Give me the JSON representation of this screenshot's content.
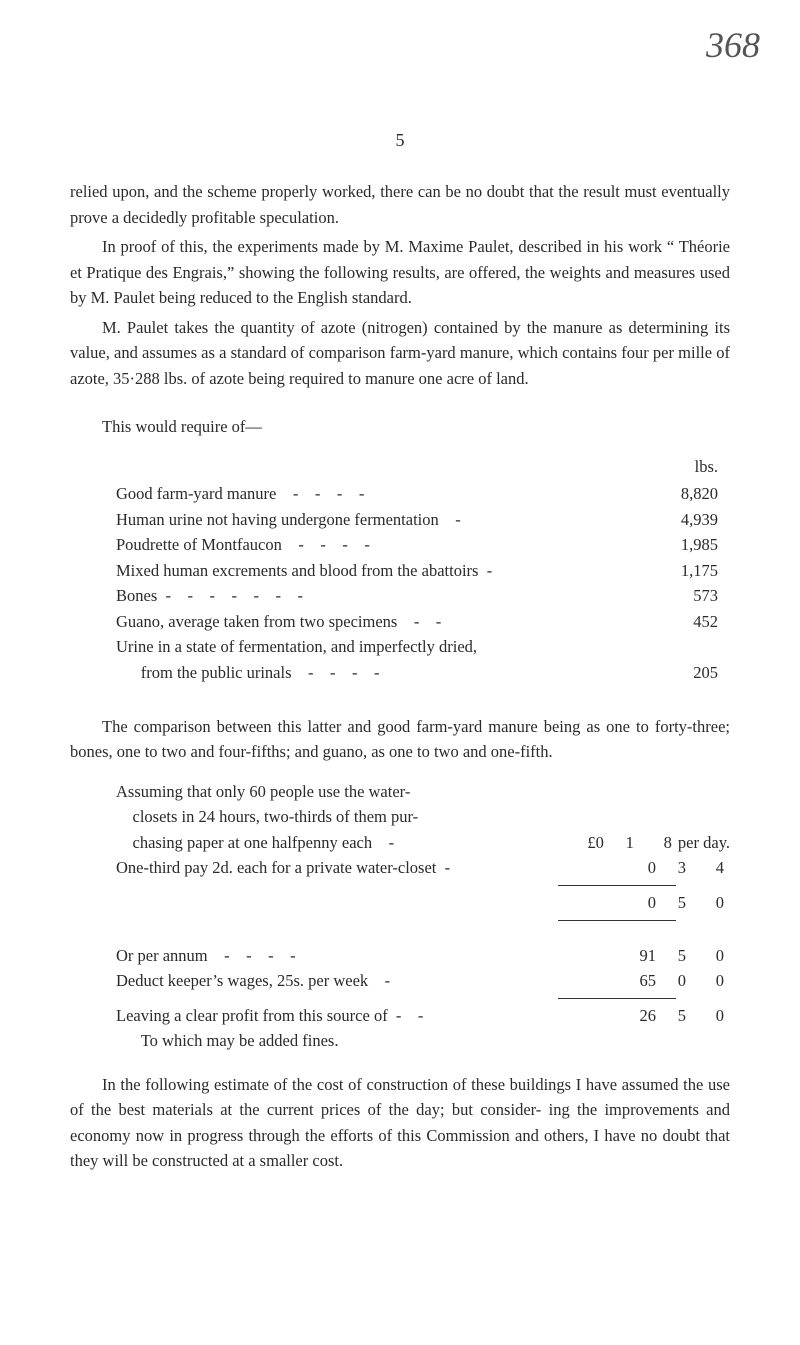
{
  "corner_handwritten": "368",
  "page_number": "5",
  "para1": "relied upon, and the scheme properly worked, there can be no doubt that the result must eventually prove a decidedly profitable speculation.",
  "para2": "In proof of this, the experiments made by M. Maxime Paulet, described in his work “ Théorie et Pratique des Engrais,” showing the following results, are offered, the weights and measures used by M. Paulet being reduced to the English standard.",
  "para3": "M. Paulet takes the quantity of azote (nitrogen) contained by the manure as determining its value, and assumes as a standard of comparison farm-yard manure, which contains four per mille of azote, 35·288 lbs. of azote being required to manure one acre of land.",
  "require_intro": "This would require of—",
  "lbs_label": "lbs.",
  "reqTable": [
    {
      "label": "Good farm-yard manure    -    -    -    -",
      "val": "8,820"
    },
    {
      "label": "Human urine not having undergone fermentation    -",
      "val": "4,939"
    },
    {
      "label": "Poudrette of Montfaucon    -    -    -    -",
      "val": "1,985"
    },
    {
      "label": "Mixed human excrements and blood from the abattoirs  -",
      "val": "1,175"
    },
    {
      "label": "Bones  -    -    -    -    -    -    -",
      "val": "573"
    },
    {
      "label": "Guano, average taken from two specimens    -    -",
      "val": "452"
    },
    {
      "label": "Urine in a state of fermentation, and imperfectly dried,",
      "val": ""
    },
    {
      "label": "      from the public urinals    -    -    -    -",
      "val": "205"
    }
  ],
  "para4": "The comparison between this latter and good farm-yard manure being as one to forty-three; bones, one to two and four-fifths; and guano, as one to two and one-fifth.",
  "calc": {
    "line1a": "Assuming that only 60 people use the water-",
    "line1b": "    closets in 24 hours, two-thirds of them pur-",
    "line1c": "    chasing paper at one halfpenny each    -",
    "line1c_c1": "£0",
    "line1c_c2": "1",
    "line1c_c3": "8",
    "line1c_note": "per day.",
    "line2": "One-third pay 2d. each for a private water-closet  -",
    "line2_c1": "0",
    "line2_c2": "3",
    "line2_c3": "4",
    "sum1_c1": "0",
    "sum1_c2": "5",
    "sum1_c3": "0",
    "line3": "Or per annum    -    -    -    -",
    "line3_c1": "91",
    "line3_c2": "5",
    "line3_c3": "0",
    "line4": "Deduct keeper’s wages, 25s. per week    -",
    "line4_c1": "65",
    "line4_c2": "0",
    "line4_c3": "0",
    "line5": "Leaving a clear profit from this source of  -    -",
    "line5_c1": "26",
    "line5_c2": "5",
    "line5_c3": "0",
    "line6": "      To which may be added fines."
  },
  "para5": "In the following estimate of the cost of construction of these buildings I have assumed the use of the best materials at the current prices of the day; but consider- ing the improvements and economy now in progress through the efforts of this Commission and others, I have no doubt that they will be constructed at a smaller cost."
}
